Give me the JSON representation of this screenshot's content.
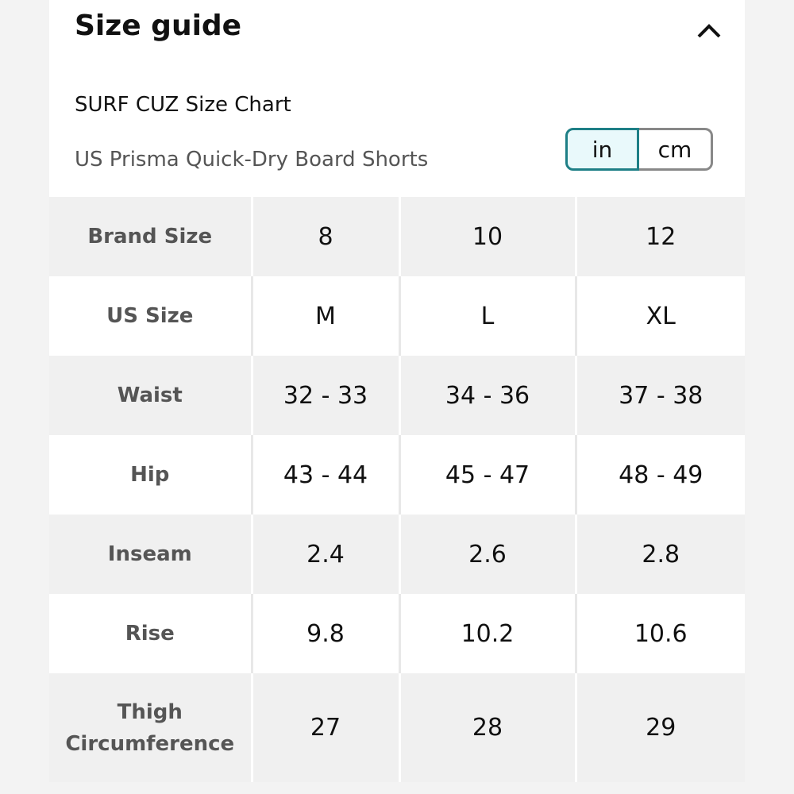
{
  "header": {
    "title": "Size guide",
    "chart_name": "SURF CUZ Size Chart",
    "product": "US Prisma Quick-Dry Board Shorts"
  },
  "units": [
    "in",
    "cm"
  ],
  "table": {
    "rows": [
      [
        "Brand Size",
        "8",
        "10",
        "12"
      ],
      [
        "US Size",
        "M",
        "L",
        "XL"
      ],
      [
        "Waist",
        "32 - 33",
        "34 - 36",
        "37 - 38"
      ],
      [
        "Hip",
        "43 - 44",
        "45 - 47",
        "48 - 49"
      ],
      [
        "Inseam",
        "2.4",
        "2.6",
        "2.8"
      ],
      [
        "Rise",
        "9.8",
        "10.2",
        "10.6"
      ],
      [
        "Thigh Circumference",
        "27",
        "28",
        "29"
      ]
    ]
  }
}
